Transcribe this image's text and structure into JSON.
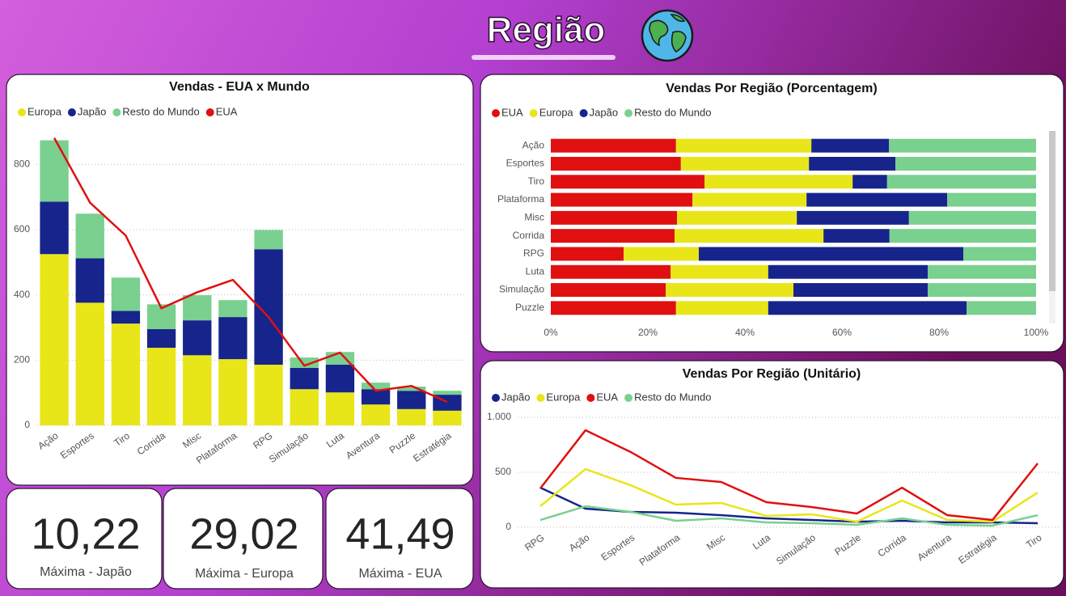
{
  "header": {
    "title": "Região"
  },
  "chart_data": [
    {
      "type": "bar",
      "stacked": true,
      "title": "Vendas - EUA x Mundo",
      "legend": "top-left",
      "grid": true,
      "categories": [
        "Ação",
        "Esportes",
        "Tiro",
        "Corrida",
        "Misc",
        "Plataforma",
        "RPG",
        "Simulação",
        "Luta",
        "Aventura",
        "Puzzle",
        "Estratégia"
      ],
      "series": [
        {
          "name": "Europa",
          "color": "#e8e619",
          "values": [
            525,
            376,
            312,
            238,
            215,
            203,
            186,
            111,
            101,
            64,
            50,
            45
          ]
        },
        {
          "name": "Japão",
          "color": "#16248c",
          "values": [
            161,
            136,
            39,
            57,
            107,
            129,
            354,
            65,
            85,
            47,
            56,
            49
          ]
        },
        {
          "name": "Resto do Mundo",
          "color": "#79d08f",
          "values": [
            188,
            137,
            102,
            76,
            77,
            52,
            59,
            32,
            39,
            20,
            13,
            12
          ]
        },
        {
          "name": "EUA",
          "color": "#e01010",
          "type": "line",
          "values": [
            881,
            683,
            582,
            359,
            408,
            446,
            332,
            183,
            223,
            106,
            121,
            72
          ]
        }
      ],
      "ylim": [
        0,
        900
      ],
      "yticks": [
        0,
        200,
        400,
        600,
        800
      ]
    },
    {
      "type": "bar",
      "orientation": "horizontal",
      "stacked": true,
      "title": "Vendas Por Região (Porcentagem)",
      "legend": "top-left",
      "grid": false,
      "categories": [
        "Ação",
        "Esportes",
        "Tiro",
        "Plataforma",
        "Misc",
        "Corrida",
        "RPG",
        "Luta",
        "Simulação",
        "Puzzle"
      ],
      "series": [
        {
          "name": "EUA",
          "color": "#e01010",
          "values": [
            25.8,
            26.8,
            31.7,
            29.2,
            26,
            25.5,
            15,
            24.7,
            23.7,
            25.8
          ]
        },
        {
          "name": "Europa",
          "color": "#e8e619",
          "values": [
            27.9,
            26.4,
            30.5,
            23.5,
            24.7,
            30.7,
            15.5,
            20.1,
            26.3,
            19
          ]
        },
        {
          "name": "Japão",
          "color": "#16248c",
          "values": [
            16,
            17.8,
            7.1,
            29,
            23.1,
            13.6,
            54.5,
            32.9,
            27.7,
            40.9
          ]
        },
        {
          "name": "Resto do Mundo",
          "color": "#79d08f",
          "values": [
            30.3,
            29,
            30.7,
            18.3,
            26.2,
            30.2,
            15,
            22.3,
            22.3,
            14.3
          ]
        }
      ],
      "xlim": [
        0,
        100
      ],
      "xticks": [
        {
          "value": 0,
          "label": "0%"
        },
        {
          "value": 20,
          "label": "20%"
        },
        {
          "value": 40,
          "label": "40%"
        },
        {
          "value": 60,
          "label": "60%"
        },
        {
          "value": 80,
          "label": "80%"
        },
        {
          "value": 100,
          "label": "100%"
        }
      ]
    },
    {
      "type": "line",
      "title": "Vendas Por Região (Unitário)",
      "legend": "top-left",
      "grid": true,
      "categories": [
        "RPG",
        "Ação",
        "Esportes",
        "Plataforma",
        "Misc",
        "Luta",
        "Simulação",
        "Puzzle",
        "Corrida",
        "Aventura",
        "Estratégia",
        "Tiro"
      ],
      "series": [
        {
          "name": "Japão",
          "color": "#16248c",
          "values": [
            360,
            169,
            140,
            132,
            110,
            81,
            66,
            51,
            59,
            44,
            44,
            37
          ]
        },
        {
          "name": "Europa",
          "color": "#e8e619",
          "values": [
            191,
            529,
            382,
            206,
            221,
            103,
            118,
            51,
            243,
            66,
            51,
            316
          ]
        },
        {
          "name": "EUA",
          "color": "#e01010",
          "values": [
            353,
            882,
            684,
            449,
            412,
            228,
            184,
            125,
            360,
            110,
            66,
            581
          ]
        },
        {
          "name": "Resto do Mundo",
          "color": "#79d08f",
          "values": [
            66,
            191,
            140,
            59,
            81,
            44,
            37,
            22,
            81,
            22,
            15,
            110
          ]
        }
      ],
      "ylim": [
        0,
        1000
      ],
      "yticks": [
        0,
        500,
        {
          "value": 1000,
          "label": "1.000"
        }
      ]
    }
  ],
  "cards": [
    {
      "value": "10,22",
      "label": "Máxima - Japão"
    },
    {
      "value": "29,02",
      "label": "Máxima - Europa"
    },
    {
      "value": "41,49",
      "label": "Máxima - EUA"
    }
  ]
}
